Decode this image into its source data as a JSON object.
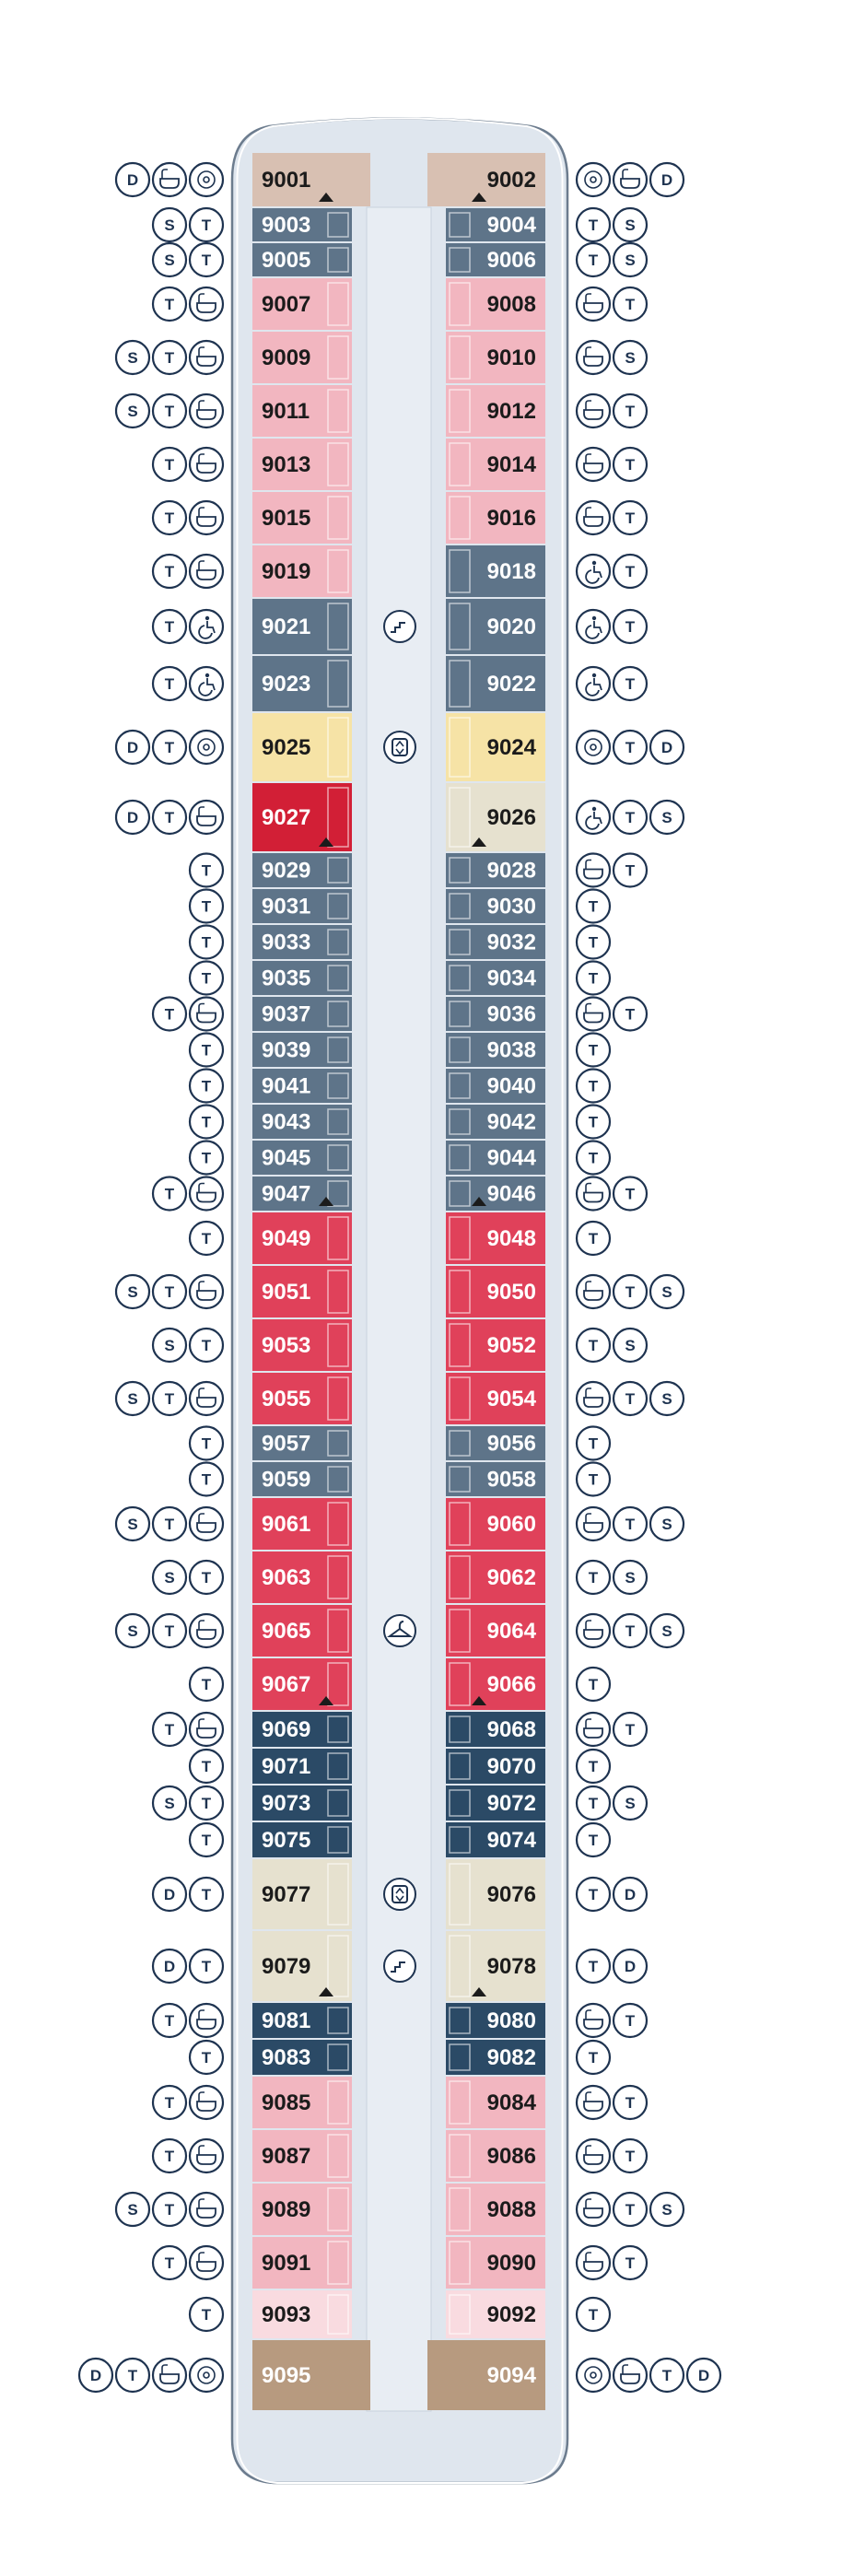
{
  "deck": {
    "colors": {
      "hull_fill": "#dfe6ee",
      "hull_stroke": "#6c7c8e",
      "corridor": "#e8edf3",
      "bow": "#d8c0b2",
      "stern": "#b79a7f",
      "symbol_stroke": "#1e3350"
    },
    "categories": {
      "bow": {
        "fill": "#d8c0b2",
        "text": "#1b1b1b"
      },
      "stern": {
        "fill": "#b79a7f",
        "text": "#ffffff"
      },
      "slate": {
        "fill": "#5e7489",
        "text": "#ffffff"
      },
      "navy": {
        "fill": "#2b4a66",
        "text": "#ffffff"
      },
      "pink": {
        "fill": "#f2b6c0",
        "text": "#1b1b1b"
      },
      "red": {
        "fill": "#e0415a",
        "text": "#ffffff"
      },
      "crimson": {
        "fill": "#d21f36",
        "text": "#ffffff"
      },
      "yellow": {
        "fill": "#f6e3a6",
        "text": "#1b1b1b"
      },
      "beige": {
        "fill": "#e6e1cf",
        "text": "#1b1b1b"
      },
      "blush": {
        "fill": "#f9dbe0",
        "text": "#1b1b1b"
      }
    },
    "symbols": {
      "D": "D",
      "T": "T",
      "S": "S",
      "bath": "bathtub-icon",
      "spa": "whirlpool-icon",
      "acc": "wheelchair-icon"
    },
    "rows": [
      {
        "l": "9001",
        "lc": "bow",
        "r": "9002",
        "rc": "bow",
        "h": 60,
        "ls": [
          "D",
          "bath",
          "spa"
        ],
        "rs": [
          "spa",
          "bath",
          "D"
        ]
      },
      {
        "l": "9003",
        "lc": "slate",
        "r": "9004",
        "rc": "slate",
        "h": 38,
        "ls": [
          "S",
          "T"
        ],
        "rs": [
          "T",
          "S"
        ]
      },
      {
        "l": "9005",
        "lc": "slate",
        "r": "9006",
        "rc": "slate",
        "h": 38,
        "ls": [
          "S",
          "T"
        ],
        "rs": [
          "T",
          "S"
        ]
      },
      {
        "l": "9007",
        "lc": "pink",
        "r": "9008",
        "rc": "pink",
        "h": 58,
        "ls": [
          "T",
          "bath"
        ],
        "rs": [
          "bath",
          "T"
        ]
      },
      {
        "l": "9009",
        "lc": "pink",
        "r": "9010",
        "rc": "pink",
        "h": 58,
        "ls": [
          "S",
          "T",
          "bath"
        ],
        "rs": [
          "bath",
          "S"
        ]
      },
      {
        "l": "9011",
        "lc": "pink",
        "r": "9012",
        "rc": "pink",
        "h": 58,
        "ls": [
          "S",
          "T",
          "bath"
        ],
        "rs": [
          "bath",
          "T"
        ]
      },
      {
        "l": "9013",
        "lc": "pink",
        "r": "9014",
        "rc": "pink",
        "h": 58,
        "ls": [
          "T",
          "bath"
        ],
        "rs": [
          "bath",
          "T"
        ]
      },
      {
        "l": "9015",
        "lc": "pink",
        "r": "9016",
        "rc": "pink",
        "h": 58,
        "ls": [
          "T",
          "bath"
        ],
        "rs": [
          "bath",
          "T"
        ]
      },
      {
        "l": "9019",
        "lc": "pink",
        "r": "9018",
        "rc": "slate",
        "h": 58,
        "ls": [
          "T",
          "bath"
        ],
        "rs": [
          "acc",
          "T"
        ]
      },
      {
        "l": "9021",
        "lc": "slate",
        "r": "9020",
        "rc": "slate",
        "h": 62,
        "ls": [
          "T",
          "acc"
        ],
        "rs": [
          "acc",
          "T"
        ]
      },
      {
        "l": "9023",
        "lc": "slate",
        "r": "9022",
        "rc": "slate",
        "h": 62,
        "ls": [
          "T",
          "acc"
        ],
        "rs": [
          "acc",
          "T"
        ]
      },
      {
        "l": "9025",
        "lc": "yellow",
        "r": "9024",
        "rc": "yellow",
        "h": 76,
        "ls": [
          "D",
          "T",
          "spa"
        ],
        "rs": [
          "spa",
          "T",
          "D"
        ]
      },
      {
        "l": "9027",
        "lc": "crimson",
        "r": "9026",
        "rc": "beige",
        "h": 76,
        "ls": [
          "D",
          "T",
          "bath"
        ],
        "rs": [
          "acc",
          "T",
          "S"
        ]
      },
      {
        "l": "9029",
        "lc": "slate",
        "r": "9028",
        "rc": "slate",
        "h": 39,
        "ls": [
          "T"
        ],
        "rs": [
          "bath",
          "T"
        ]
      },
      {
        "l": "9031",
        "lc": "slate",
        "r": "9030",
        "rc": "slate",
        "h": 39,
        "ls": [
          "T"
        ],
        "rs": [
          "T"
        ]
      },
      {
        "l": "9033",
        "lc": "slate",
        "r": "9032",
        "rc": "slate",
        "h": 39,
        "ls": [
          "T"
        ],
        "rs": [
          "T"
        ]
      },
      {
        "l": "9035",
        "lc": "slate",
        "r": "9034",
        "rc": "slate",
        "h": 39,
        "ls": [
          "T"
        ],
        "rs": [
          "T"
        ]
      },
      {
        "l": "9037",
        "lc": "slate",
        "r": "9036",
        "rc": "slate",
        "h": 39,
        "ls": [
          "T",
          "bath"
        ],
        "rs": [
          "bath",
          "T"
        ]
      },
      {
        "l": "9039",
        "lc": "slate",
        "r": "9038",
        "rc": "slate",
        "h": 39,
        "ls": [
          "T"
        ],
        "rs": [
          "T"
        ]
      },
      {
        "l": "9041",
        "lc": "slate",
        "r": "9040",
        "rc": "slate",
        "h": 39,
        "ls": [
          "T"
        ],
        "rs": [
          "T"
        ]
      },
      {
        "l": "9043",
        "lc": "slate",
        "r": "9042",
        "rc": "slate",
        "h": 39,
        "ls": [
          "T"
        ],
        "rs": [
          "T"
        ]
      },
      {
        "l": "9045",
        "lc": "slate",
        "r": "9044",
        "rc": "slate",
        "h": 39,
        "ls": [
          "T"
        ],
        "rs": [
          "T"
        ]
      },
      {
        "l": "9047",
        "lc": "slate",
        "r": "9046",
        "rc": "slate",
        "h": 39,
        "ls": [
          "T",
          "bath"
        ],
        "rs": [
          "bath",
          "T"
        ]
      },
      {
        "l": "9049",
        "lc": "red",
        "r": "9048",
        "rc": "red",
        "h": 58,
        "ls": [
          "T"
        ],
        "rs": [
          "T"
        ]
      },
      {
        "l": "9051",
        "lc": "red",
        "r": "9050",
        "rc": "red",
        "h": 58,
        "ls": [
          "S",
          "T",
          "bath"
        ],
        "rs": [
          "bath",
          "T",
          "S"
        ]
      },
      {
        "l": "9053",
        "lc": "red",
        "r": "9052",
        "rc": "red",
        "h": 58,
        "ls": [
          "S",
          "T"
        ],
        "rs": [
          "T",
          "S"
        ]
      },
      {
        "l": "9055",
        "lc": "red",
        "r": "9054",
        "rc": "red",
        "h": 58,
        "ls": [
          "S",
          "T",
          "bath"
        ],
        "rs": [
          "bath",
          "T",
          "S"
        ]
      },
      {
        "l": "9057",
        "lc": "slate",
        "r": "9056",
        "rc": "slate",
        "h": 39,
        "ls": [
          "T"
        ],
        "rs": [
          "T"
        ]
      },
      {
        "l": "9059",
        "lc": "slate",
        "r": "9058",
        "rc": "slate",
        "h": 39,
        "ls": [
          "T"
        ],
        "rs": [
          "T"
        ]
      },
      {
        "l": "9061",
        "lc": "red",
        "r": "9060",
        "rc": "red",
        "h": 58,
        "ls": [
          "S",
          "T",
          "bath"
        ],
        "rs": [
          "bath",
          "T",
          "S"
        ]
      },
      {
        "l": "9063",
        "lc": "red",
        "r": "9062",
        "rc": "red",
        "h": 58,
        "ls": [
          "S",
          "T"
        ],
        "rs": [
          "T",
          "S"
        ]
      },
      {
        "l": "9065",
        "lc": "red",
        "r": "9064",
        "rc": "red",
        "h": 58,
        "ls": [
          "S",
          "T",
          "bath"
        ],
        "rs": [
          "bath",
          "T",
          "S"
        ]
      },
      {
        "l": "9067",
        "lc": "red",
        "r": "9066",
        "rc": "red",
        "h": 58,
        "ls": [
          "T"
        ],
        "rs": [
          "T"
        ]
      },
      {
        "l": "9069",
        "lc": "navy",
        "r": "9068",
        "rc": "navy",
        "h": 40,
        "ls": [
          "T",
          "bath"
        ],
        "rs": [
          "bath",
          "T"
        ]
      },
      {
        "l": "9071",
        "lc": "navy",
        "r": "9070",
        "rc": "navy",
        "h": 40,
        "ls": [
          "T"
        ],
        "rs": [
          "T"
        ]
      },
      {
        "l": "9073",
        "lc": "navy",
        "r": "9072",
        "rc": "navy",
        "h": 40,
        "ls": [
          "S",
          "T"
        ],
        "rs": [
          "T",
          "S"
        ]
      },
      {
        "l": "9075",
        "lc": "navy",
        "r": "9074",
        "rc": "navy",
        "h": 40,
        "ls": [
          "T"
        ],
        "rs": [
          "T"
        ]
      },
      {
        "l": "9077",
        "lc": "beige",
        "r": "9076",
        "rc": "beige",
        "h": 78,
        "ls": [
          "D",
          "T"
        ],
        "rs": [
          "T",
          "D"
        ]
      },
      {
        "l": "9079",
        "lc": "beige",
        "r": "9078",
        "rc": "beige",
        "h": 78,
        "ls": [
          "D",
          "T"
        ],
        "rs": [
          "T",
          "D"
        ]
      },
      {
        "l": "9081",
        "lc": "navy",
        "r": "9080",
        "rc": "navy",
        "h": 40,
        "ls": [
          "T",
          "bath"
        ],
        "rs": [
          "bath",
          "T"
        ]
      },
      {
        "l": "9083",
        "lc": "navy",
        "r": "9082",
        "rc": "navy",
        "h": 40,
        "ls": [
          "T"
        ],
        "rs": [
          "T"
        ]
      },
      {
        "l": "9085",
        "lc": "pink",
        "r": "9084",
        "rc": "pink",
        "h": 58,
        "ls": [
          "T",
          "bath"
        ],
        "rs": [
          "bath",
          "T"
        ]
      },
      {
        "l": "9087",
        "lc": "pink",
        "r": "9086",
        "rc": "pink",
        "h": 58,
        "ls": [
          "T",
          "bath"
        ],
        "rs": [
          "bath",
          "T"
        ]
      },
      {
        "l": "9089",
        "lc": "pink",
        "r": "9088",
        "rc": "pink",
        "h": 58,
        "ls": [
          "S",
          "T",
          "bath"
        ],
        "rs": [
          "bath",
          "T",
          "S"
        ]
      },
      {
        "l": "9091",
        "lc": "pink",
        "r": "9090",
        "rc": "pink",
        "h": 58,
        "ls": [
          "T",
          "bath"
        ],
        "rs": [
          "bath",
          "T"
        ]
      },
      {
        "l": "9093",
        "lc": "blush",
        "r": "9092",
        "rc": "blush",
        "h": 54,
        "ls": [
          "T"
        ],
        "rs": [
          "T"
        ]
      },
      {
        "l": "9095",
        "lc": "stern",
        "r": "9094",
        "rc": "stern",
        "h": 78,
        "ls": [
          "D",
          "T",
          "bath",
          "spa"
        ],
        "rs": [
          "spa",
          "bath",
          "T",
          "D"
        ]
      }
    ],
    "amenities": [
      {
        "icon": "stairs-icon",
        "row": 9
      },
      {
        "icon": "elevator-icon",
        "row": 11
      },
      {
        "icon": "laundry-icon",
        "row": 31
      },
      {
        "icon": "elevator-icon",
        "row": 37
      },
      {
        "icon": "stairs-icon",
        "row": 38
      }
    ]
  }
}
